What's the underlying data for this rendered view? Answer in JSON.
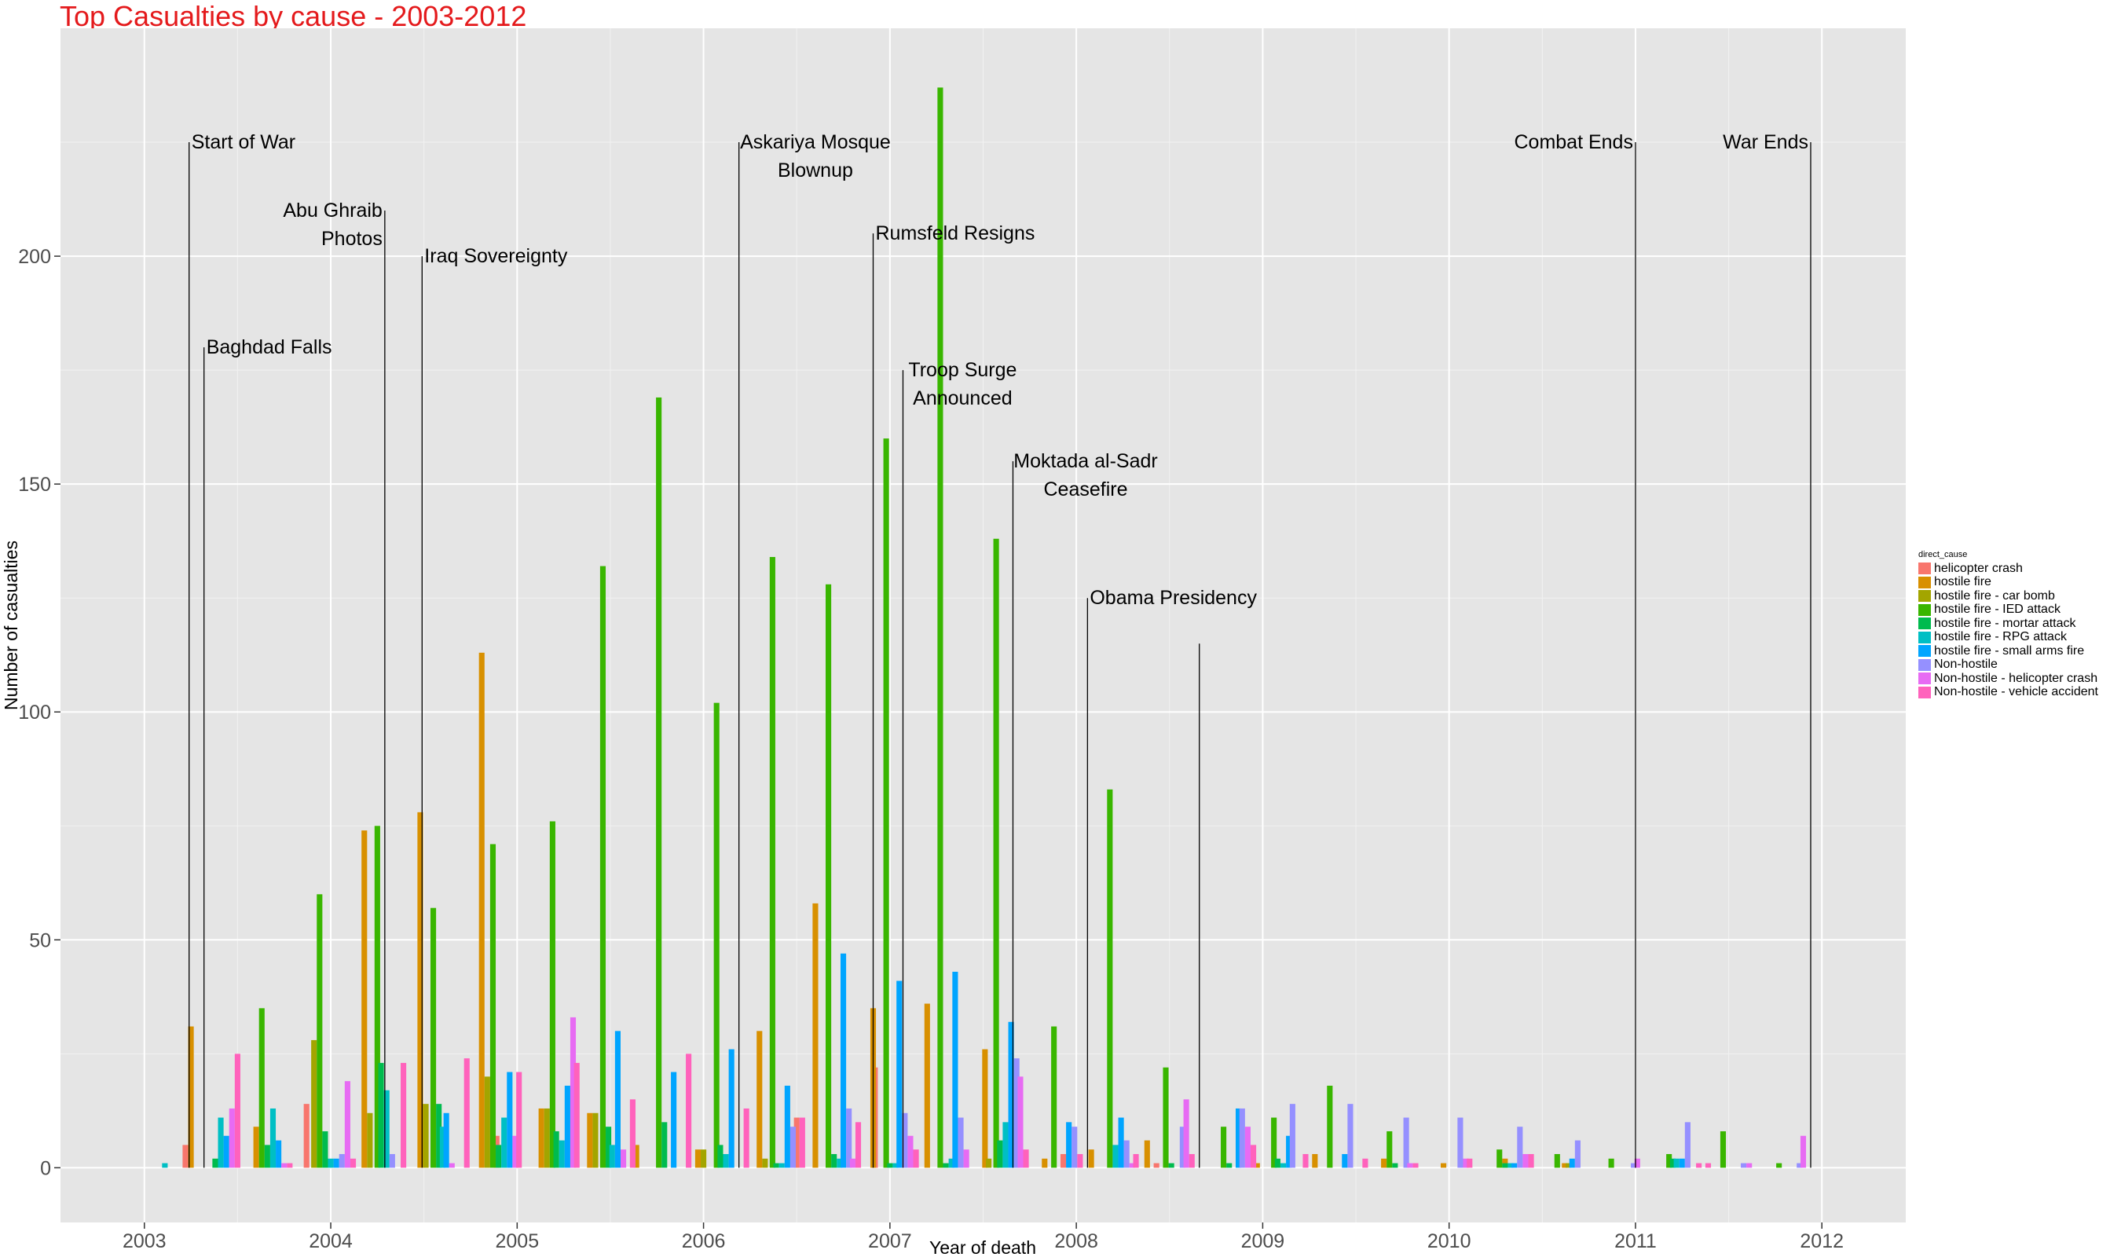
{
  "chart_data": {
    "type": "bar",
    "title": "Top Casualties by cause - 2003-2012",
    "xlabel": "Year of death",
    "ylabel": "Number of casualties",
    "xlim": [
      2002.55,
      2012.45
    ],
    "ylim": [
      -12,
      250
    ],
    "x_ticks": [
      2003,
      2004,
      2005,
      2006,
      2007,
      2008,
      2009,
      2010,
      2011,
      2012
    ],
    "y_ticks": [
      0,
      50,
      100,
      150,
      200
    ],
    "grid": true,
    "legend_position": "right",
    "legend_title": "direct_cause",
    "series": [
      {
        "name": "helicopter crash",
        "color": "#F8766D",
        "points": [
          [
            2003.22,
            5
          ],
          [
            2003.87,
            14
          ],
          [
            2004.89,
            7
          ],
          [
            2006.5,
            11
          ],
          [
            2006.92,
            22
          ],
          [
            2007.93,
            3
          ],
          [
            2008.43,
            1
          ]
        ]
      },
      {
        "name": "hostile fire",
        "color": "#D89000",
        "points": [
          [
            2003.25,
            31
          ],
          [
            2003.6,
            9
          ],
          [
            2004.18,
            74
          ],
          [
            2004.48,
            78
          ],
          [
            2004.81,
            113
          ],
          [
            2005.13,
            13
          ],
          [
            2005.39,
            12
          ],
          [
            2005.64,
            5
          ],
          [
            2005.97,
            4
          ],
          [
            2006.3,
            30
          ],
          [
            2006.6,
            58
          ],
          [
            2006.91,
            35
          ],
          [
            2007.2,
            36
          ],
          [
            2007.51,
            26
          ],
          [
            2007.83,
            2
          ],
          [
            2008.08,
            4
          ],
          [
            2008.38,
            6
          ],
          [
            2008.97,
            1
          ],
          [
            2009.28,
            3
          ],
          [
            2009.65,
            2
          ],
          [
            2009.97,
            1
          ],
          [
            2010.3,
            2
          ],
          [
            2010.62,
            1
          ]
        ]
      },
      {
        "name": "hostile fire - car bomb",
        "color": "#A3A500",
        "points": [
          [
            2003.91,
            28
          ],
          [
            2004.21,
            12
          ],
          [
            2004.51,
            14
          ],
          [
            2004.84,
            20
          ],
          [
            2005.16,
            13
          ],
          [
            2005.42,
            12
          ],
          [
            2006.0,
            4
          ],
          [
            2006.33,
            2
          ],
          [
            2007.53,
            2
          ],
          [
            2010.64,
            1
          ]
        ]
      },
      {
        "name": "hostile fire - IED attack",
        "color": "#39B600",
        "points": [
          [
            2003.63,
            35
          ],
          [
            2003.94,
            60
          ],
          [
            2004.25,
            75
          ],
          [
            2004.55,
            57
          ],
          [
            2004.87,
            71
          ],
          [
            2005.19,
            76
          ],
          [
            2005.46,
            132
          ],
          [
            2005.76,
            169
          ],
          [
            2006.07,
            102
          ],
          [
            2006.37,
            134
          ],
          [
            2006.67,
            128
          ],
          [
            2006.98,
            160
          ],
          [
            2007.27,
            237
          ],
          [
            2007.57,
            138
          ],
          [
            2007.88,
            31
          ],
          [
            2008.18,
            83
          ],
          [
            2008.48,
            22
          ],
          [
            2008.79,
            9
          ],
          [
            2009.06,
            11
          ],
          [
            2009.36,
            18
          ],
          [
            2009.68,
            8
          ],
          [
            2010.27,
            4
          ],
          [
            2010.58,
            3
          ],
          [
            2010.87,
            2
          ],
          [
            2011.18,
            3
          ],
          [
            2011.47,
            8
          ],
          [
            2011.77,
            1
          ]
        ]
      },
      {
        "name": "hostile fire - mortar attack",
        "color": "#00BB4E",
        "points": [
          [
            2003.38,
            2
          ],
          [
            2003.66,
            5
          ],
          [
            2003.97,
            8
          ],
          [
            2004.27,
            23
          ],
          [
            2004.58,
            14
          ],
          [
            2004.9,
            5
          ],
          [
            2005.21,
            8
          ],
          [
            2005.49,
            9
          ],
          [
            2005.79,
            10
          ],
          [
            2006.09,
            5
          ],
          [
            2006.39,
            1
          ],
          [
            2006.7,
            3
          ],
          [
            2007.0,
            1
          ],
          [
            2007.3,
            1
          ],
          [
            2007.59,
            6
          ],
          [
            2008.51,
            1
          ],
          [
            2008.82,
            1
          ],
          [
            2009.08,
            2
          ],
          [
            2009.71,
            1
          ],
          [
            2010.3,
            1
          ],
          [
            2011.2,
            2
          ]
        ]
      },
      {
        "name": "hostile fire - RPG attack",
        "color": "#00BFC4",
        "points": [
          [
            2003.11,
            1
          ],
          [
            2003.41,
            11
          ],
          [
            2003.69,
            13
          ],
          [
            2004.0,
            2
          ],
          [
            2004.3,
            17
          ],
          [
            2004.6,
            9
          ],
          [
            2004.93,
            11
          ],
          [
            2005.24,
            6
          ],
          [
            2005.51,
            5
          ],
          [
            2006.12,
            3
          ],
          [
            2006.42,
            1
          ],
          [
            2006.73,
            2
          ],
          [
            2007.03,
            1
          ],
          [
            2007.33,
            2
          ],
          [
            2007.62,
            10
          ],
          [
            2008.21,
            5
          ],
          [
            2009.11,
            1
          ],
          [
            2010.33,
            1
          ],
          [
            2011.22,
            2
          ]
        ]
      },
      {
        "name": "hostile fire - small arms fire",
        "color": "#00A5FF",
        "points": [
          [
            2003.44,
            7
          ],
          [
            2003.72,
            6
          ],
          [
            2004.03,
            2
          ],
          [
            2004.62,
            12
          ],
          [
            2004.96,
            21
          ],
          [
            2005.27,
            18
          ],
          [
            2005.54,
            30
          ],
          [
            2005.84,
            21
          ],
          [
            2006.15,
            26
          ],
          [
            2006.45,
            18
          ],
          [
            2006.75,
            47
          ],
          [
            2007.05,
            41
          ],
          [
            2007.35,
            43
          ],
          [
            2007.65,
            32
          ],
          [
            2007.96,
            10
          ],
          [
            2008.24,
            11
          ],
          [
            2008.87,
            13
          ],
          [
            2009.14,
            7
          ],
          [
            2009.44,
            3
          ],
          [
            2010.35,
            1
          ],
          [
            2010.66,
            2
          ],
          [
            2011.25,
            2
          ]
        ]
      },
      {
        "name": "Non-hostile",
        "color": "#9590FF",
        "points": [
          [
            2004.06,
            3
          ],
          [
            2004.33,
            3
          ],
          [
            2006.48,
            9
          ],
          [
            2006.78,
            13
          ],
          [
            2007.08,
            12
          ],
          [
            2007.38,
            11
          ],
          [
            2007.68,
            24
          ],
          [
            2007.99,
            9
          ],
          [
            2008.27,
            6
          ],
          [
            2008.57,
            9
          ],
          [
            2008.89,
            13
          ],
          [
            2009.16,
            14
          ],
          [
            2009.47,
            14
          ],
          [
            2009.77,
            11
          ],
          [
            2010.06,
            11
          ],
          [
            2010.38,
            9
          ],
          [
            2010.69,
            6
          ],
          [
            2010.99,
            1
          ],
          [
            2011.28,
            10
          ],
          [
            2011.58,
            1
          ],
          [
            2011.88,
            1
          ]
        ]
      },
      {
        "name": "Non-hostile - helicopter crash",
        "color": "#E76BF3",
        "points": [
          [
            2003.47,
            13
          ],
          [
            2003.75,
            1
          ],
          [
            2004.09,
            19
          ],
          [
            2004.65,
            1
          ],
          [
            2004.99,
            7
          ],
          [
            2005.3,
            33
          ],
          [
            2005.57,
            4
          ],
          [
            2006.8,
            2
          ],
          [
            2007.11,
            7
          ],
          [
            2007.41,
            4
          ],
          [
            2007.7,
            20
          ],
          [
            2008.3,
            1
          ],
          [
            2008.59,
            15
          ],
          [
            2008.92,
            9
          ],
          [
            2009.79,
            1
          ],
          [
            2010.09,
            2
          ],
          [
            2010.41,
            3
          ],
          [
            2011.01,
            2
          ],
          [
            2011.61,
            1
          ],
          [
            2011.9,
            7
          ]
        ]
      },
      {
        "name": "Non-hostile - vehicle accident",
        "color": "#FF62BC",
        "points": [
          [
            2003.5,
            25
          ],
          [
            2003.78,
            1
          ],
          [
            2004.12,
            2
          ],
          [
            2004.39,
            23
          ],
          [
            2004.73,
            24
          ],
          [
            2005.01,
            21
          ],
          [
            2005.32,
            23
          ],
          [
            2005.62,
            15
          ],
          [
            2005.92,
            25
          ],
          [
            2006.23,
            13
          ],
          [
            2006.53,
            11
          ],
          [
            2006.83,
            10
          ],
          [
            2007.14,
            4
          ],
          [
            2007.73,
            4
          ],
          [
            2008.02,
            3
          ],
          [
            2008.32,
            3
          ],
          [
            2008.62,
            3
          ],
          [
            2008.95,
            5
          ],
          [
            2009.23,
            3
          ],
          [
            2009.55,
            2
          ],
          [
            2009.82,
            1
          ],
          [
            2010.11,
            2
          ],
          [
            2010.44,
            3
          ],
          [
            2011.34,
            1
          ],
          [
            2011.39,
            1
          ]
        ]
      }
    ],
    "annotations": [
      {
        "x": 2003.24,
        "y": 225,
        "lines": [
          "Start of War"
        ],
        "align": "start"
      },
      {
        "x": 2003.32,
        "y": 180,
        "lines": [
          "Baghdad Falls"
        ],
        "align": "start"
      },
      {
        "x": 2004.29,
        "y": 210,
        "lines": [
          "Abu Ghraib",
          "Photos"
        ],
        "align": "end"
      },
      {
        "x": 2004.49,
        "y": 200,
        "lines": [
          "Iraq Sovereignty"
        ],
        "align": "start"
      },
      {
        "x": 2006.19,
        "y": 225,
        "lines": [
          "Askariya Mosque",
          "Blownup"
        ],
        "align": "middle",
        "label_x": 2006.6
      },
      {
        "x": 2006.91,
        "y": 205,
        "lines": [
          "Rumsfeld Resigns"
        ],
        "align": "start"
      },
      {
        "x": 2007.07,
        "y": 175,
        "lines": [
          "Troop Surge",
          "Announced"
        ],
        "align": "middle",
        "label_x": 2007.39
      },
      {
        "x": 2007.66,
        "y": 155,
        "lines": [
          "Moktada al-Sadr",
          "Ceasefire"
        ],
        "align": "middle",
        "label_x": 2008.05
      },
      {
        "x": 2008.06,
        "y": 125,
        "lines": [
          "Obama Presidency"
        ],
        "align": "start"
      },
      {
        "x": 2008.66,
        "y": 115,
        "lines": [],
        "align": "start"
      },
      {
        "x": 2011.0,
        "y": 225,
        "lines": [
          "Combat Ends"
        ],
        "align": "end"
      },
      {
        "x": 2011.94,
        "y": 225,
        "lines": [
          "War Ends"
        ],
        "align": "end"
      }
    ]
  }
}
